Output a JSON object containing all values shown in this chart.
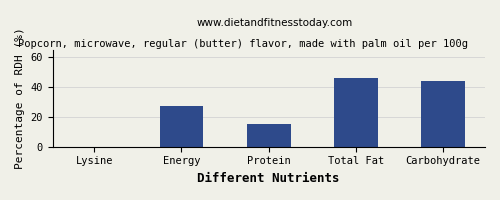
{
  "title": "Popcorn, microwave, regular (butter) flavor, made with palm oil per 100g",
  "subtitle": "www.dietandfitnesstoday.com",
  "categories": [
    "Lysine",
    "Energy",
    "Protein",
    "Total Fat",
    "Carbohydrate"
  ],
  "values": [
    0,
    27,
    15,
    46,
    44
  ],
  "bar_color": "#2E4A8B",
  "xlabel": "Different Nutrients",
  "ylabel": "Percentage of RDH (%)",
  "ylim": [
    0,
    65
  ],
  "yticks": [
    0,
    20,
    40,
    60
  ],
  "background_color": "#f0f0e8",
  "title_fontsize": 7.5,
  "subtitle_fontsize": 7.5,
  "axis_label_fontsize": 8,
  "tick_fontsize": 7.5,
  "xlabel_fontsize": 9
}
